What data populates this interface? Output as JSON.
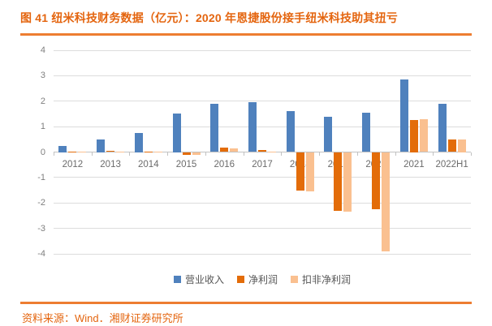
{
  "title": "图 41 纽米科技财务数据（亿元）：2020 年恩捷股份接手纽米科技助其扭亏",
  "source": "资料来源：Wind．湘财证券研究所",
  "colors": {
    "accent_orange_text": "#e4650f",
    "rule_orange": "#ed7d31",
    "grid_gray": "#dcdcdc",
    "axis_gray": "#c2c2c2",
    "tick_text_gray": "#7f7f7f"
  },
  "chart_data": {
    "type": "bar",
    "title": "纽米科技财务数据（亿元）",
    "categories": [
      "2012",
      "2013",
      "2014",
      "2015",
      "2016",
      "2017",
      "2018",
      "2019",
      "2020",
      "2021",
      "2022H1"
    ],
    "series": [
      {
        "name": "营业收入",
        "color": "#4f81bd",
        "values": [
          0.25,
          0.5,
          0.75,
          1.5,
          1.9,
          1.95,
          1.6,
          1.4,
          1.55,
          2.85,
          1.9
        ]
      },
      {
        "name": "净利润",
        "color": "#e36c09",
        "values": [
          0.02,
          0.04,
          0.02,
          -0.1,
          0.17,
          0.07,
          -1.5,
          -2.3,
          -2.25,
          1.25,
          0.48
        ]
      },
      {
        "name": "扣非净利润",
        "color": "#fac090",
        "values": [
          0.01,
          0.02,
          0.01,
          -0.12,
          0.14,
          0.02,
          -1.55,
          -2.35,
          -3.9,
          1.28,
          0.5
        ]
      }
    ],
    "xlabel": "",
    "ylabel": "",
    "ylim": [
      -4,
      4
    ],
    "yticks": [
      4,
      3,
      2,
      1,
      0,
      -1,
      -2,
      -3,
      -4
    ],
    "grid": true,
    "legend_position": "bottom"
  }
}
